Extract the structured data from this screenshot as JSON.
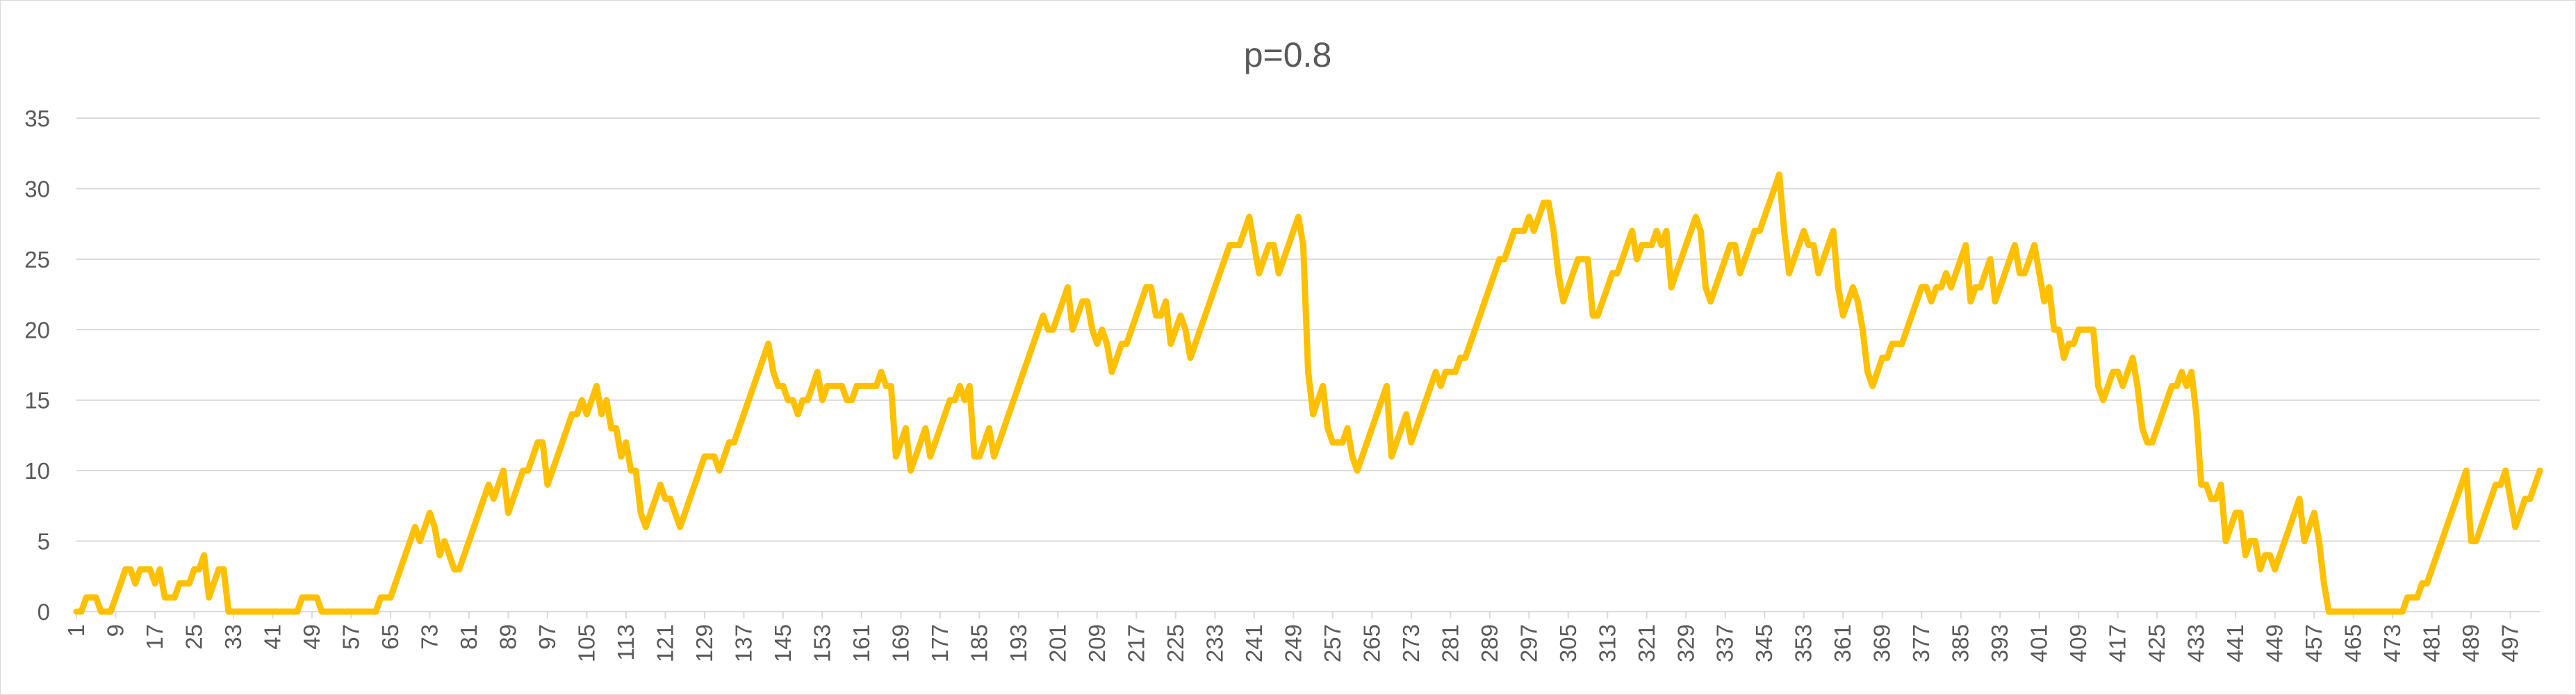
{
  "chart_data": {
    "type": "line",
    "title": "p=0.8",
    "xlabel": "",
    "ylabel": "",
    "x_start": 1,
    "x_tick_step": 8,
    "ylim": [
      0,
      35
    ],
    "y_ticks": [
      0,
      5,
      10,
      15,
      20,
      25,
      30,
      35
    ],
    "grid": "horizontal",
    "legend": "none",
    "series": [
      {
        "color": "#FFC000",
        "values": [
          0,
          0,
          1,
          1,
          1,
          0,
          0,
          0,
          1,
          2,
          3,
          3,
          2,
          3,
          3,
          3,
          2,
          3,
          1,
          1,
          1,
          2,
          2,
          2,
          3,
          3,
          4,
          1,
          2,
          3,
          3,
          0,
          0,
          0,
          0,
          0,
          0,
          0,
          0,
          0,
          0,
          0,
          0,
          0,
          0,
          0,
          1,
          1,
          1,
          1,
          0,
          0,
          0,
          0,
          0,
          0,
          0,
          0,
          0,
          0,
          0,
          0,
          1,
          1,
          1,
          2,
          3,
          4,
          5,
          6,
          5,
          6,
          7,
          6,
          4,
          5,
          4,
          3,
          3,
          4,
          5,
          6,
          7,
          8,
          9,
          8,
          9,
          10,
          7,
          8,
          9,
          10,
          10,
          11,
          12,
          12,
          9,
          10,
          11,
          12,
          13,
          14,
          14,
          15,
          14,
          15,
          16,
          14,
          15,
          13,
          13,
          11,
          12,
          10,
          10,
          7,
          6,
          7,
          8,
          9,
          8,
          8,
          7,
          6,
          7,
          8,
          9,
          10,
          11,
          11,
          11,
          10,
          11,
          12,
          12,
          13,
          14,
          15,
          16,
          17,
          18,
          19,
          17,
          16,
          16,
          15,
          15,
          14,
          15,
          15,
          16,
          17,
          15,
          16,
          16,
          16,
          16,
          15,
          15,
          16,
          16,
          16,
          16,
          16,
          17,
          16,
          16,
          11,
          12,
          13,
          10,
          11,
          12,
          13,
          11,
          12,
          13,
          14,
          15,
          15,
          16,
          15,
          16,
          11,
          11,
          12,
          13,
          11,
          12,
          13,
          14,
          15,
          16,
          17,
          18,
          19,
          20,
          21,
          20,
          20,
          21,
          22,
          23,
          20,
          21,
          22,
          22,
          20,
          19,
          20,
          19,
          17,
          18,
          19,
          19,
          20,
          21,
          22,
          23,
          23,
          21,
          21,
          22,
          19,
          20,
          21,
          20,
          18,
          19,
          20,
          21,
          22,
          23,
          24,
          25,
          26,
          26,
          26,
          27,
          28,
          26,
          24,
          25,
          26,
          26,
          24,
          25,
          26,
          27,
          28,
          26,
          17,
          14,
          15,
          16,
          13,
          12,
          12,
          12,
          13,
          11,
          10,
          11,
          12,
          13,
          14,
          15,
          16,
          11,
          12,
          13,
          14,
          12,
          13,
          14,
          15,
          16,
          17,
          16,
          17,
          17,
          17,
          18,
          18,
          19,
          20,
          21,
          22,
          23,
          24,
          25,
          25,
          26,
          27,
          27,
          27,
          28,
          27,
          28,
          29,
          29,
          27,
          24,
          22,
          23,
          24,
          25,
          25,
          25,
          21,
          21,
          22,
          23,
          24,
          24,
          25,
          26,
          27,
          25,
          26,
          26,
          26,
          27,
          26,
          27,
          23,
          24,
          25,
          26,
          27,
          28,
          27,
          23,
          22,
          23,
          24,
          25,
          26,
          26,
          24,
          25,
          26,
          27,
          27,
          28,
          29,
          30,
          31,
          27,
          24,
          25,
          26,
          27,
          26,
          26,
          24,
          25,
          26,
          27,
          23,
          21,
          22,
          23,
          22,
          20,
          17,
          16,
          17,
          18,
          18,
          19,
          19,
          19,
          20,
          21,
          22,
          23,
          23,
          22,
          23,
          23,
          24,
          23,
          24,
          25,
          26,
          22,
          23,
          23,
          24,
          25,
          22,
          23,
          24,
          25,
          26,
          24,
          24,
          25,
          26,
          24,
          22,
          23,
          20,
          20,
          18,
          19,
          19,
          20,
          20,
          20,
          20,
          16,
          15,
          16,
          17,
          17,
          16,
          17,
          18,
          16,
          13,
          12,
          12,
          13,
          14,
          15,
          16,
          16,
          17,
          16,
          17,
          14,
          9,
          9,
          8,
          8,
          9,
          5,
          6,
          7,
          7,
          4,
          5,
          5,
          3,
          4,
          4,
          3,
          4,
          5,
          6,
          7,
          8,
          5,
          6,
          7,
          5,
          2,
          0,
          0,
          0,
          0,
          0,
          0,
          0,
          0,
          0,
          0,
          0,
          0,
          0,
          0,
          0,
          0,
          1,
          1,
          1,
          2,
          2,
          3,
          4,
          5,
          6,
          7,
          8,
          9,
          10,
          5,
          5,
          6,
          7,
          8,
          9,
          9,
          10,
          8,
          6,
          7,
          8,
          8,
          9,
          10
        ]
      }
    ]
  }
}
